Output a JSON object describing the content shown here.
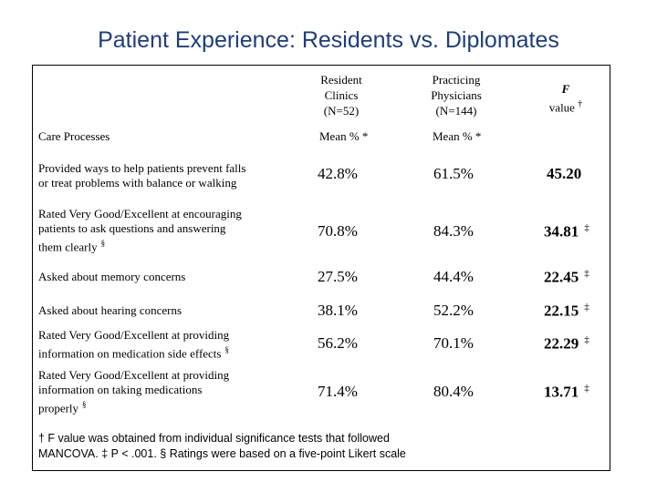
{
  "title": "Patient Experience: Residents vs. Diplomates",
  "header": {
    "col1": [
      "Resident",
      "Clinics",
      "(N=52)"
    ],
    "col2": [
      "Practicing",
      "Physicians",
      "(N=144)"
    ],
    "col3_f": "F",
    "col3_value": "value",
    "col3_mark": "†"
  },
  "subheader": {
    "label": "Care Processes",
    "mean1": "Mean % *",
    "mean2": "Mean % *"
  },
  "rows": [
    {
      "lines": [
        "Provided ways to help patients prevent falls",
        "or treat problems with balance or walking"
      ],
      "note": "",
      "resident": "42.8%",
      "practicing": "61.5%",
      "f": "45.20",
      "mark": ""
    },
    {
      "lines": [
        "Rated Very Good/Excellent at encouraging",
        "patients to ask questions and answering",
        "them clearly"
      ],
      "note": "§",
      "resident": "70.8%",
      "practicing": "84.3%",
      "f": "34.81",
      "mark": "‡"
    },
    {
      "lines": [
        "Asked about memory concerns"
      ],
      "note": "",
      "resident": "27.5%",
      "practicing": "44.4%",
      "f": "22.45",
      "mark": "‡"
    },
    {
      "lines": [
        "Asked about hearing concerns"
      ],
      "note": "",
      "resident": "38.1%",
      "practicing": "52.2%",
      "f": "22.15",
      "mark": "‡"
    },
    {
      "lines": [
        "Rated Very Good/Excellent at providing",
        "information on medication side effects"
      ],
      "note": "§",
      "resident": "56.2%",
      "practicing": "70.1%",
      "f": "22.29",
      "mark": "‡"
    },
    {
      "lines": [
        "Rated Very Good/Excellent at providing",
        "information on taking medications",
        "properly"
      ],
      "note": "§",
      "resident": "71.4%",
      "practicing": "80.4%",
      "f": "13.71",
      "mark": "‡"
    }
  ],
  "footnote": {
    "line1": "† F value was obtained from individual significance tests that followed",
    "line2": "MANCOVA. ‡ P < .001. § Ratings were based on a five-point Likert scale"
  }
}
